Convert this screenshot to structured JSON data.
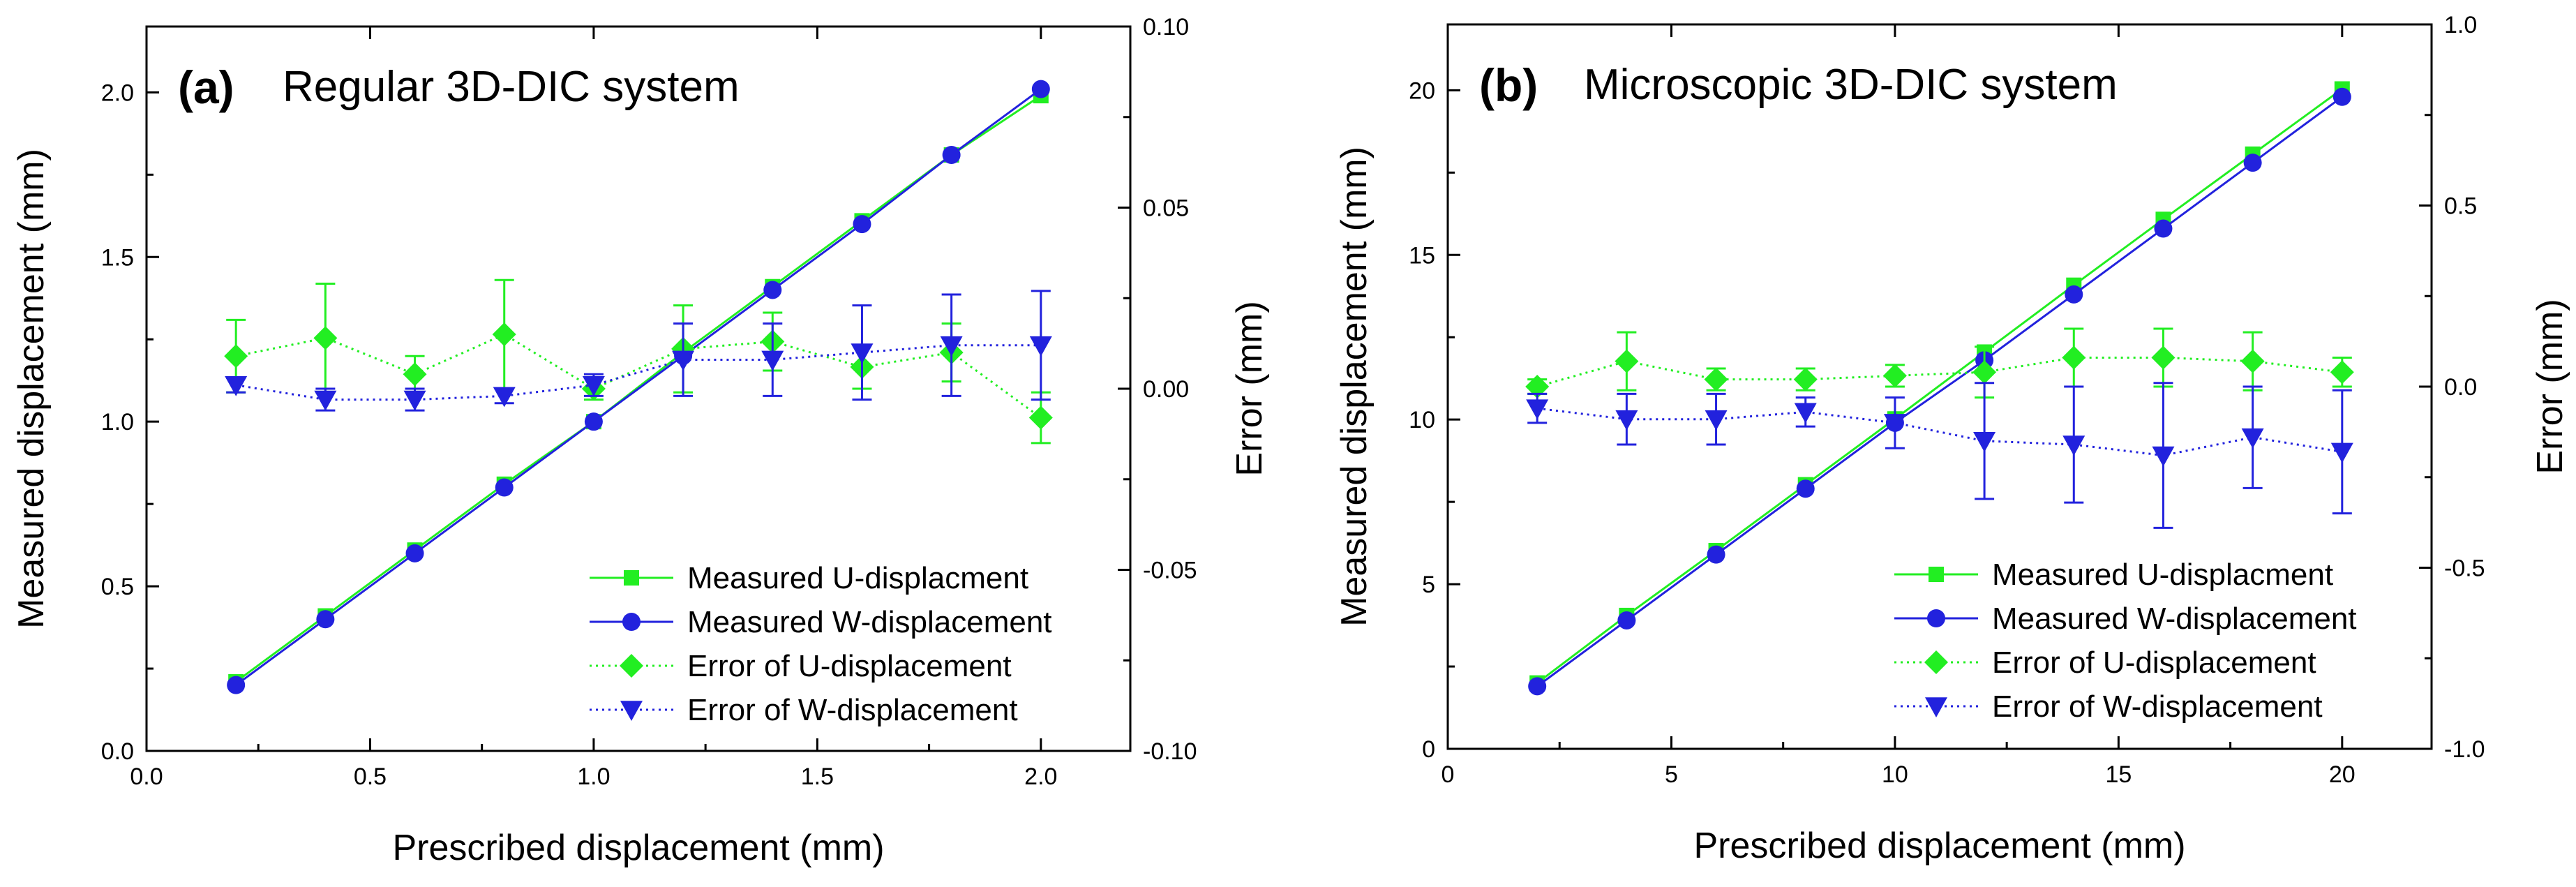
{
  "figure": {
    "caption_visible": false
  },
  "chart_data": [
    {
      "type": "line",
      "panel_label": "(a)",
      "title": "Regular 3D-DIC system",
      "xlabel": "Prescribed displacement (mm)",
      "ylabel": "Measured displacement (mm)",
      "y2label": "Error (mm)",
      "xlim": [
        0,
        2.2
      ],
      "ylim": [
        0,
        2.2
      ],
      "y2lim": [
        -0.1,
        0.1
      ],
      "xticks": [
        0,
        0.5,
        1.0,
        1.5,
        2.0
      ],
      "xtick_labels": [
        "0.0",
        "0.5",
        "1.0",
        "1.5",
        "2.0"
      ],
      "yticks": [
        0,
        0.5,
        1.0,
        1.5,
        2.0
      ],
      "ytick_labels": [
        "0.0",
        "0.5",
        "1.0",
        "1.5",
        "2.0"
      ],
      "y2ticks": [
        -0.1,
        -0.05,
        0,
        0.05,
        0.1
      ],
      "y2tick_labels": [
        "-0.10",
        "-0.05",
        "0.00",
        "0.05",
        "0.10"
      ],
      "legend_position": "bottom-right",
      "x": [
        0.2,
        0.4,
        0.6,
        0.8,
        1.0,
        1.2,
        1.4,
        1.6,
        1.8,
        2.0
      ],
      "series": [
        {
          "name": "Measured U-displacment",
          "axis": "left",
          "style": "solid",
          "marker": "square",
          "color": "#22ee22",
          "values": [
            0.21,
            0.41,
            0.61,
            0.81,
            1.0,
            1.21,
            1.41,
            1.61,
            1.81,
            1.99
          ]
        },
        {
          "name": "Measured W-displacement",
          "axis": "left",
          "style": "solid",
          "marker": "circle",
          "color": "#2222dd",
          "values": [
            0.2,
            0.4,
            0.6,
            0.8,
            1.0,
            1.2,
            1.4,
            1.6,
            1.81,
            2.01
          ]
        },
        {
          "name": "Error of U-displacement",
          "axis": "right",
          "style": "dotted",
          "marker": "diamond",
          "color": "#22ee22",
          "values": [
            0.009,
            0.014,
            0.004,
            0.015,
            0.0,
            0.011,
            0.013,
            0.006,
            0.01,
            -0.008
          ],
          "errors": [
            0.01,
            0.015,
            0.005,
            0.015,
            0.003,
            0.012,
            0.008,
            0.006,
            0.008,
            0.007
          ]
        },
        {
          "name": "Error of W-displacement",
          "axis": "right",
          "style": "dotted",
          "marker": "triangle-down",
          "color": "#2222dd",
          "values": [
            0.001,
            -0.003,
            -0.003,
            -0.002,
            0.001,
            0.008,
            0.008,
            0.01,
            0.012,
            0.012
          ],
          "errors": [
            0.002,
            0.003,
            0.003,
            0.002,
            0.003,
            0.01,
            0.01,
            0.013,
            0.014,
            0.015
          ]
        }
      ]
    },
    {
      "type": "line",
      "panel_label": "(b)",
      "title": "Microscopic 3D-DIC system",
      "xlabel": "Prescribed displacement (mm)",
      "ylabel": "Measured displacement (mm)",
      "y2label": "Error (mm)",
      "xlim": [
        0,
        22
      ],
      "ylim": [
        0,
        22
      ],
      "y2lim": [
        -1.0,
        1.0
      ],
      "xticks": [
        0,
        5,
        10,
        15,
        20
      ],
      "xtick_labels": [
        "0",
        "5",
        "10",
        "15",
        "20"
      ],
      "yticks": [
        0,
        5,
        10,
        15,
        20
      ],
      "ytick_labels": [
        "0",
        "5",
        "10",
        "15",
        "20"
      ],
      "y2ticks": [
        -1.0,
        -0.5,
        0,
        0.5,
        1.0
      ],
      "y2tick_labels": [
        "-1.0",
        "-0.5",
        "0.0",
        "0.5",
        "1.0"
      ],
      "legend_position": "bottom-right",
      "x": [
        2,
        4,
        6,
        8,
        10,
        12,
        14,
        16,
        18,
        20
      ],
      "series": [
        {
          "name": "Measured U-displacment",
          "axis": "left",
          "style": "solid",
          "marker": "square",
          "color": "#22ee22",
          "values": [
            2.0,
            4.05,
            6.02,
            8.02,
            10.02,
            12.05,
            14.08,
            16.08,
            18.06,
            20.04
          ]
        },
        {
          "name": "Measured W-displacement",
          "axis": "left",
          "style": "solid",
          "marker": "circle",
          "color": "#2222dd",
          "values": [
            1.9,
            3.9,
            5.9,
            7.9,
            9.9,
            11.8,
            13.8,
            15.8,
            17.8,
            19.8
          ]
        },
        {
          "name": "Error of U-displacement",
          "axis": "right",
          "style": "dotted",
          "marker": "diamond",
          "color": "#22ee22",
          "values": [
            0.0,
            0.07,
            0.02,
            0.02,
            0.03,
            0.04,
            0.08,
            0.08,
            0.07,
            0.04
          ],
          "errors": [
            0.02,
            0.08,
            0.03,
            0.03,
            0.03,
            0.07,
            0.08,
            0.08,
            0.08,
            0.04
          ]
        },
        {
          "name": "Error of W-displacement",
          "axis": "right",
          "style": "dotted",
          "marker": "triangle-down",
          "color": "#2222dd",
          "values": [
            -0.06,
            -0.09,
            -0.09,
            -0.07,
            -0.1,
            -0.15,
            -0.16,
            -0.19,
            -0.14,
            -0.18
          ],
          "errors": [
            0.04,
            0.07,
            0.07,
            0.04,
            0.07,
            0.16,
            0.16,
            0.2,
            0.14,
            0.17
          ]
        }
      ]
    }
  ]
}
